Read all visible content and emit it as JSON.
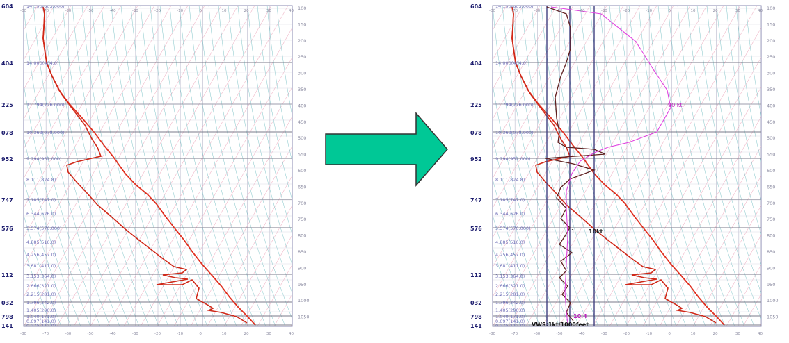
{
  "left_chart": {
    "left_labels": [
      "604",
      "404",
      "225",
      "078",
      "952",
      "747",
      "576",
      "112",
      "032",
      "798",
      "141"
    ],
    "right_labels": [
      "100",
      "150",
      "200",
      "250",
      "300",
      "350",
      "400",
      "450",
      "500",
      "550",
      "600",
      "650",
      "700",
      "750",
      "800",
      "850",
      "900",
      "950",
      "1000",
      "1050"
    ],
    "inline_labels": [
      "14.190(603.000)",
      "14.000(404.0)",
      "11.794(226.000)",
      "10.363(078.000)",
      "9.294(952.000)",
      "8.111(824.8)",
      "7.185(747.0)",
      "6.344(626.0)",
      "5.574(576.000)",
      "4.885(516.0)",
      "4.256(457.0)",
      "3.681(411.0)",
      "3.153(364.0)",
      "2.666(321.0)",
      "2.215(281.0)",
      "1.796(242.0)",
      "1.405(206.0)",
      "1.040(171.0)",
      "0.697(141.0)",
      "0.375(112.0)"
    ],
    "bottom_ticks": [
      "-80",
      "-70",
      "-60",
      "-50",
      "-40",
      "-30",
      "-20",
      "-10",
      "0",
      "10",
      "20",
      "30",
      "40"
    ]
  },
  "right_chart": {
    "left_labels": [
      "604",
      "404",
      "225",
      "078",
      "952",
      "747",
      "576",
      "112",
      "032",
      "798",
      "141"
    ],
    "right_labels": [
      "100",
      "150",
      "200",
      "250",
      "300",
      "350",
      "400",
      "450",
      "500",
      "550",
      "600",
      "650",
      "700",
      "750",
      "800",
      "850",
      "900",
      "950",
      "1000",
      "1050"
    ],
    "inline_labels": [
      "14.190(603.000)",
      "14.000(404.0)",
      "11.794(226.000)",
      "10.363(078.000)",
      "9.294(952.000)",
      "8.111(824.8)",
      "7.185(747.0)",
      "6.344(626.0)",
      "5.574(576.000)",
      "4.885(516.0)",
      "4.256(457.0)",
      "3.681(411.0)",
      "3.153(364.0)",
      "2.666(321.0)",
      "2.215(281.0)",
      "1.796(242.0)",
      "1.405(206.0)",
      "1.040(171.0)",
      "0.697(141.0)",
      "0.375(112.0)"
    ],
    "bottom_ticks": [
      "-80",
      "-70",
      "-60",
      "-50",
      "-40",
      "-30",
      "-20",
      "-10",
      "0",
      "10",
      "20",
      "30",
      "40"
    ],
    "annotation_top": "90 kt",
    "annotation_mid": "10kt",
    "annotation_bottom_value": "10.4",
    "annotation_bottom_text": "VWS:1kt/1000feet",
    "annotation_axis_label": "1"
  },
  "arrow_color": "#00c896"
}
